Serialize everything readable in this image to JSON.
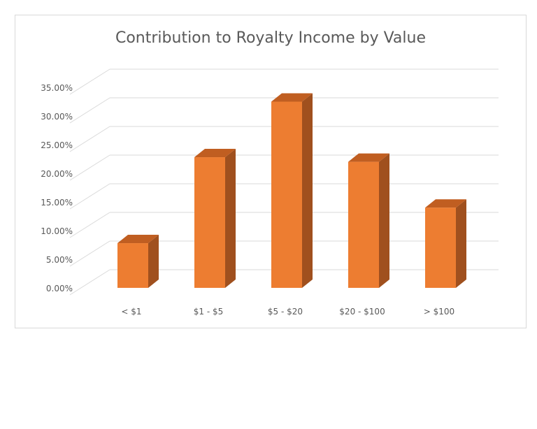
{
  "chart_data": {
    "type": "bar",
    "title": "Contribution to Royalty Income by Value",
    "categories": [
      "< $1",
      "$1 - $5",
      "$5 - $20",
      "$20 - $100",
      "> $100"
    ],
    "values": [
      7.8,
      22.8,
      32.5,
      22.0,
      14.0
    ],
    "value_unit": "%",
    "ylim": [
      0,
      35
    ],
    "yticks": [
      "0.00%",
      "5.00%",
      "10.00%",
      "15.00%",
      "20.00%",
      "25.00%",
      "30.00%",
      "35.00%"
    ],
    "xlabel": "",
    "ylabel": "",
    "grid": true,
    "legend": "none",
    "style": "3d-column",
    "colors": {
      "bar_front": "#ed7d31",
      "bar_side": "#a0501e",
      "bar_top": "#c05e21",
      "grid": "#d9d9d9",
      "text": "#595959"
    }
  }
}
